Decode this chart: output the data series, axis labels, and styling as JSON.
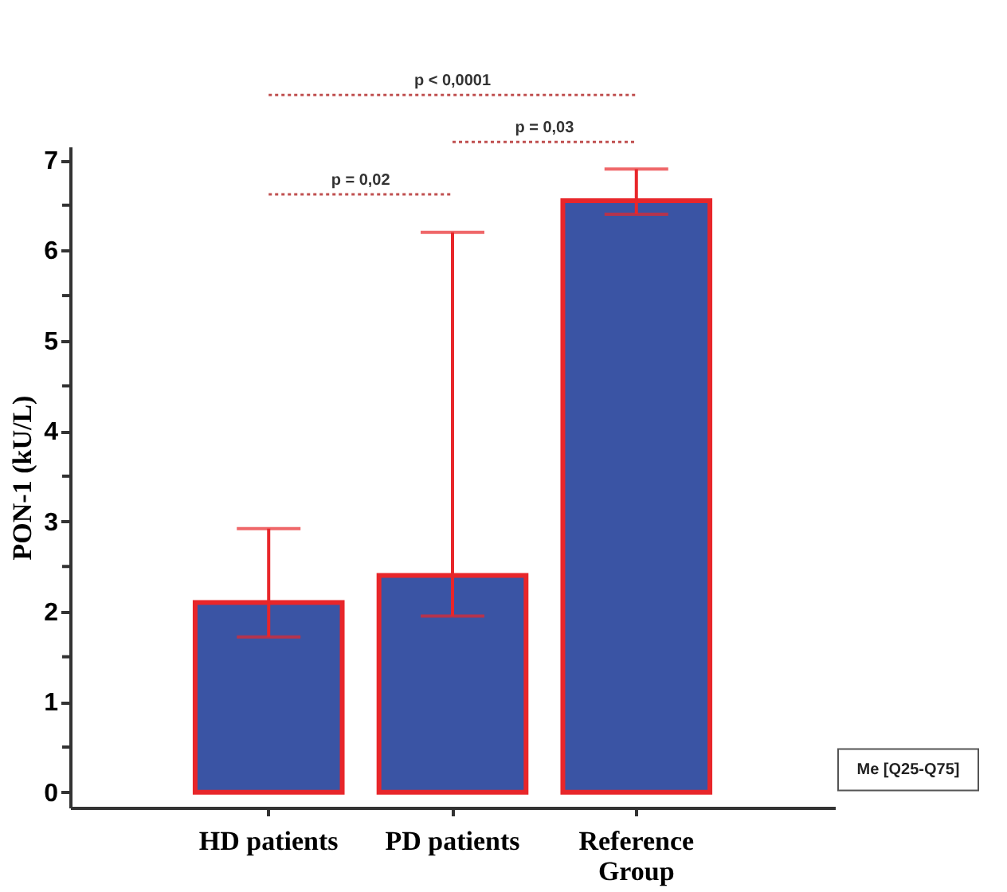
{
  "chart_data": {
    "type": "bar",
    "ylabel": "PON-1 (kU/L)",
    "categories": [
      "HD patients",
      "PD patients",
      "Reference Group"
    ],
    "values": [
      2.1,
      2.4,
      6.55
    ],
    "errors": [
      [
        1.72,
        2.92
      ],
      [
        1.95,
        6.2
      ],
      [
        6.4,
        6.9
      ]
    ],
    "color": "#3a54a4",
    "ylim": [
      -0.17,
      7.15
    ],
    "yticks": [
      0,
      {
        "value": 0.5,
        "label": null
      },
      1,
      {
        "value": 1.5,
        "label": null
      },
      2,
      {
        "value": 2.5,
        "label": null
      },
      3,
      {
        "value": 3.5,
        "label": null
      },
      4,
      {
        "value": 4.5,
        "label": null
      },
      5,
      {
        "value": 5.5,
        "label": null
      },
      6,
      {
        "value": 6.5,
        "label": null
      },
      7
    ],
    "grid": false,
    "annotations": [
      "p = 0,02",
      "p < 0,0001",
      "p = 0,03",
      "Me [Q25-Q75]"
    ]
  }
}
